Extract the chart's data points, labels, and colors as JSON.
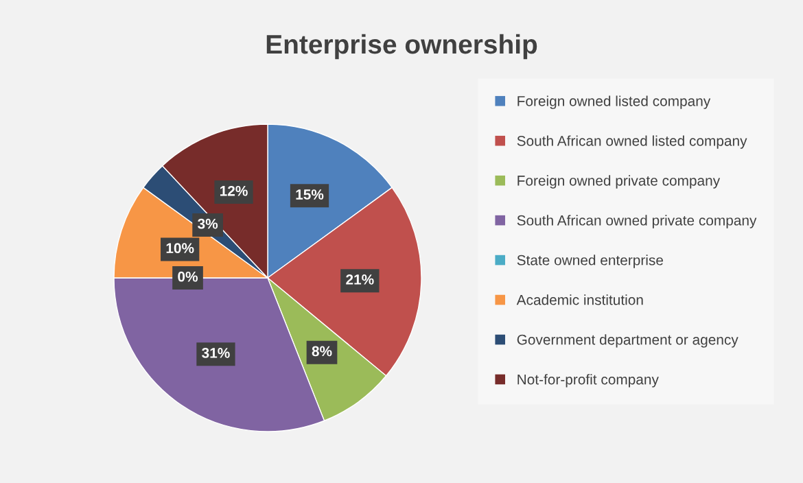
{
  "chart_data": {
    "type": "pie",
    "title": "Enterprise ownership",
    "categories": [
      "Foreign owned listed company",
      "South African owned listed company",
      "Foreign owned private company",
      "South African owned private company",
      "State owned enterprise",
      "Academic institution",
      "Government department or agency",
      "Not-for-profit company"
    ],
    "values": [
      15,
      21,
      8,
      31,
      0,
      10,
      3,
      12
    ],
    "colors": [
      "#4f81bd",
      "#c0504d",
      "#9bbb59",
      "#8064a2",
      "#4bacc6",
      "#f79646",
      "#2c4d75",
      "#772c2a"
    ],
    "value_labels": [
      "15%",
      "21%",
      "8%",
      "31%",
      "0%",
      "10%",
      "3%",
      "12%"
    ],
    "legend": "right"
  }
}
